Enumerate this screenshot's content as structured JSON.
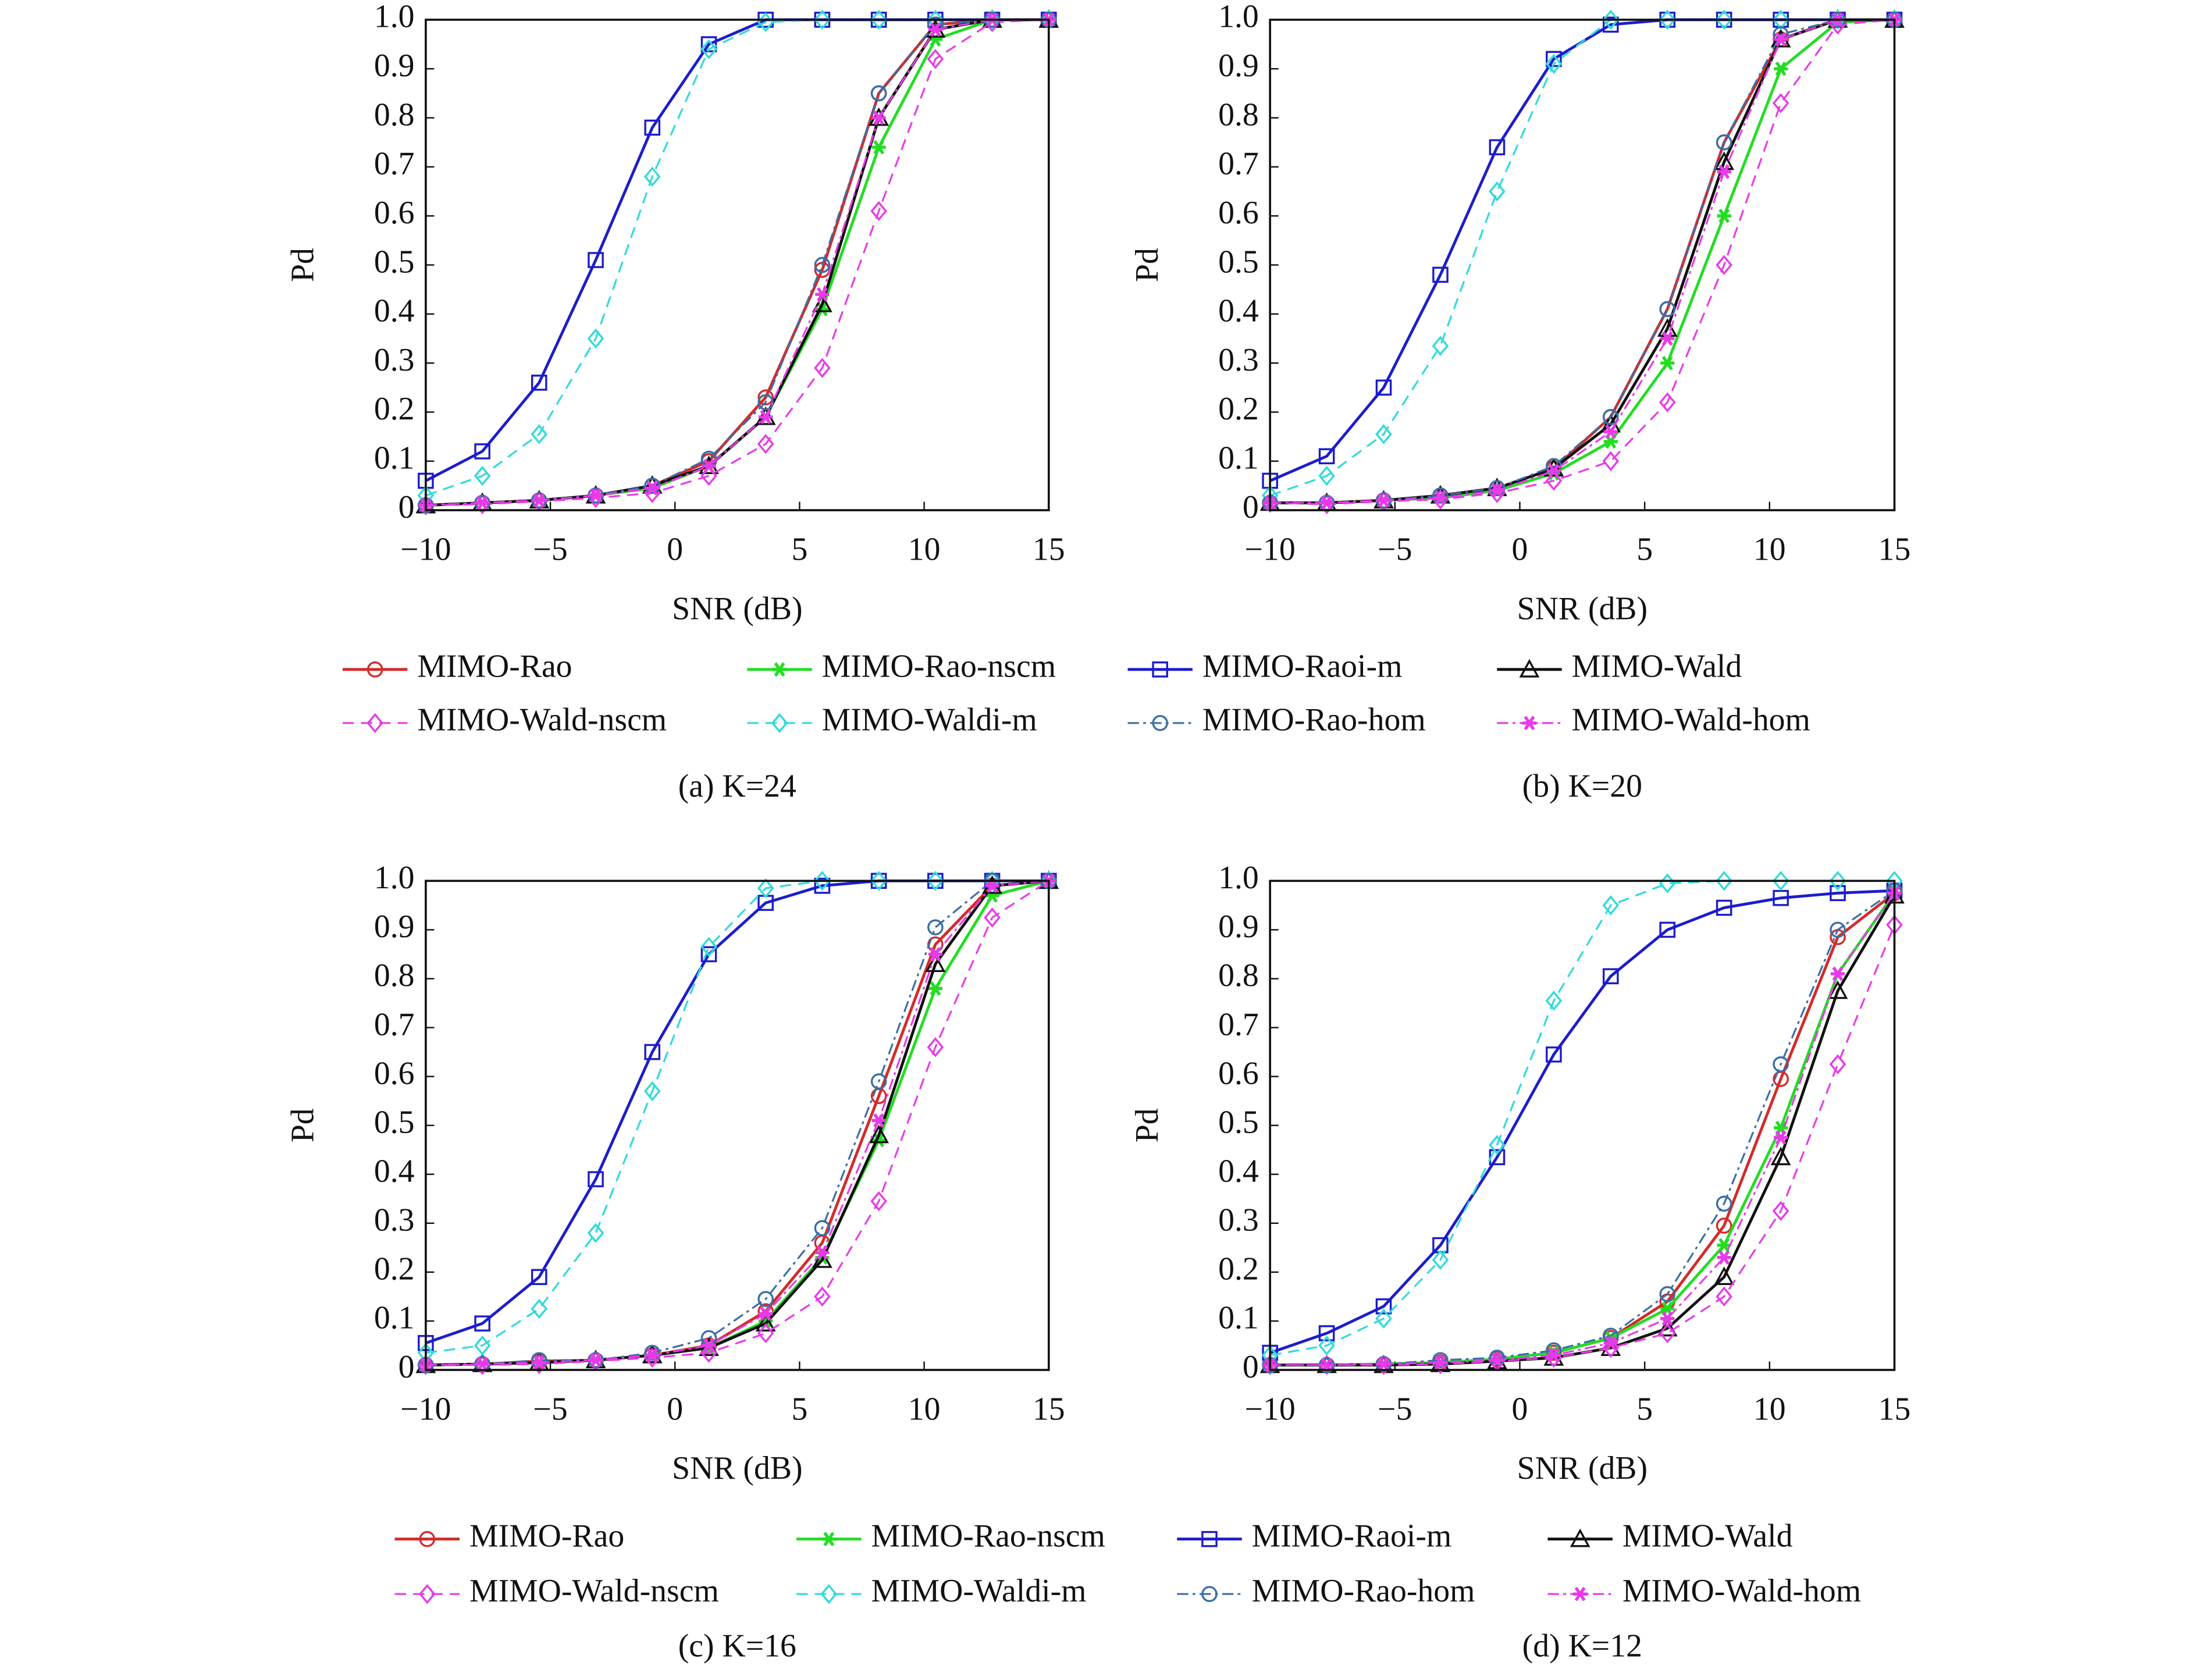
{
  "chart_data": [
    {
      "type": "line",
      "caption": "(a) K=24",
      "x_label": "SNR (dB)",
      "y_label": "Pd",
      "x": [
        -10,
        -7.73,
        -5.45,
        -3.18,
        -0.91,
        1.36,
        3.64,
        5.91,
        8.18,
        10.45,
        12.73,
        15
      ],
      "xlim": [
        -10,
        15
      ],
      "xticks": [
        {
          "value": -10,
          "label": "−10"
        },
        {
          "value": -5,
          "label": "−5"
        },
        0,
        5,
        10,
        15
      ],
      "ylim": [
        0,
        1
      ],
      "yticks": [
        0,
        0.1,
        0.2,
        0.3,
        0.4,
        0.5,
        0.6,
        0.7,
        0.8,
        0.9,
        {
          "value": 1,
          "label": "1.0"
        }
      ],
      "series": [
        {
          "name": "MIMO-Rao",
          "color": "#d42a2a",
          "marker": "circle",
          "dash": "solid",
          "values": [
            0.01,
            0.015,
            0.02,
            0.03,
            0.05,
            0.1,
            0.23,
            0.49,
            0.85,
            0.99,
            1,
            1
          ]
        },
        {
          "name": "MIMO-Rao-nscm",
          "color": "#22dd22",
          "marker": "star",
          "dash": "solid",
          "values": [
            0.01,
            0.015,
            0.02,
            0.03,
            0.045,
            0.09,
            0.19,
            0.41,
            0.74,
            0.96,
            1,
            1
          ]
        },
        {
          "name": "MIMO-Raoi-m",
          "color": "#1c1ccc",
          "marker": "square",
          "dash": "solid",
          "values": [
            0.06,
            0.12,
            0.26,
            0.51,
            0.78,
            0.95,
            1,
            1,
            1,
            1,
            1,
            1
          ]
        },
        {
          "name": "MIMO-Wald",
          "color": "#111111",
          "marker": "triangle",
          "dash": "solid",
          "values": [
            0.01,
            0.015,
            0.02,
            0.03,
            0.05,
            0.09,
            0.19,
            0.42,
            0.8,
            0.98,
            1,
            1
          ]
        },
        {
          "name": "MIMO-Wald-nscm",
          "color": "#e83ae8",
          "marker": "diamond",
          "dash": "dashed",
          "values": [
            0.01,
            0.012,
            0.018,
            0.025,
            0.035,
            0.07,
            0.135,
            0.29,
            0.61,
            0.92,
            0.995,
            1
          ]
        },
        {
          "name": "MIMO-Waldi-m",
          "color": "#30dada",
          "marker": "diamond",
          "dash": "dashed",
          "values": [
            0.03,
            0.07,
            0.155,
            0.35,
            0.68,
            0.94,
            0.995,
            1,
            1,
            1,
            1,
            1
          ]
        },
        {
          "name": "MIMO-Rao-hom",
          "color": "#3a6ea5",
          "marker": "circle",
          "dash": "dashdot",
          "values": [
            0.01,
            0.015,
            0.02,
            0.03,
            0.05,
            0.105,
            0.22,
            0.5,
            0.85,
            0.99,
            1,
            1
          ]
        },
        {
          "name": "MIMO-Wald-hom",
          "color": "#e83ae8",
          "marker": "star",
          "dash": "dashdot",
          "values": [
            0.01,
            0.015,
            0.02,
            0.03,
            0.045,
            0.09,
            0.19,
            0.44,
            0.8,
            0.98,
            1,
            1
          ]
        }
      ]
    },
    {
      "type": "line",
      "caption": "(b) K=20",
      "x_label": "SNR (dB)",
      "y_label": "Pd",
      "x": [
        -10,
        -7.73,
        -5.45,
        -3.18,
        -0.91,
        1.36,
        3.64,
        5.91,
        8.18,
        10.45,
        12.73,
        15
      ],
      "xlim": [
        -10,
        15
      ],
      "xticks": [
        {
          "value": -10,
          "label": "−10"
        },
        {
          "value": -5,
          "label": "−5"
        },
        0,
        5,
        10,
        15
      ],
      "ylim": [
        0,
        1
      ],
      "yticks": [
        0,
        0.1,
        0.2,
        0.3,
        0.4,
        0.5,
        0.6,
        0.7,
        0.8,
        0.9,
        {
          "value": 1,
          "label": "1.0"
        }
      ],
      "series": [
        {
          "name": "MIMO-Rao",
          "color": "#d42a2a",
          "marker": "circle",
          "dash": "solid",
          "values": [
            0.015,
            0.015,
            0.02,
            0.03,
            0.045,
            0.085,
            0.19,
            0.41,
            0.75,
            0.96,
            1,
            1
          ]
        },
        {
          "name": "MIMO-Rao-nscm",
          "color": "#22dd22",
          "marker": "star",
          "dash": "solid",
          "values": [
            0.015,
            0.015,
            0.02,
            0.025,
            0.04,
            0.075,
            0.14,
            0.3,
            0.6,
            0.9,
            0.995,
            1
          ]
        },
        {
          "name": "MIMO-Raoi-m",
          "color": "#1c1ccc",
          "marker": "square",
          "dash": "solid",
          "values": [
            0.06,
            0.11,
            0.25,
            0.48,
            0.74,
            0.92,
            0.99,
            1,
            1,
            1,
            1,
            1
          ]
        },
        {
          "name": "MIMO-Wald",
          "color": "#111111",
          "marker": "triangle",
          "dash": "solid",
          "values": [
            0.015,
            0.015,
            0.02,
            0.03,
            0.045,
            0.085,
            0.175,
            0.37,
            0.71,
            0.96,
            1,
            1
          ]
        },
        {
          "name": "MIMO-Wald-nscm",
          "color": "#e83ae8",
          "marker": "diamond",
          "dash": "dashed",
          "values": [
            0.015,
            0.012,
            0.018,
            0.022,
            0.035,
            0.06,
            0.1,
            0.22,
            0.5,
            0.83,
            0.99,
            1
          ]
        },
        {
          "name": "MIMO-Waldi-m",
          "color": "#30dada",
          "marker": "diamond",
          "dash": "dashed",
          "values": [
            0.03,
            0.07,
            0.155,
            0.335,
            0.65,
            0.91,
            1,
            1,
            1,
            1,
            1,
            1
          ]
        },
        {
          "name": "MIMO-Rao-hom",
          "color": "#3a6ea5",
          "marker": "circle",
          "dash": "dashdot",
          "values": [
            0.015,
            0.015,
            0.02,
            0.03,
            0.045,
            0.09,
            0.19,
            0.41,
            0.75,
            0.97,
            1,
            1
          ]
        },
        {
          "name": "MIMO-Wald-hom",
          "color": "#e83ae8",
          "marker": "star",
          "dash": "dashdot",
          "values": [
            0.015,
            0.015,
            0.02,
            0.025,
            0.04,
            0.08,
            0.16,
            0.35,
            0.69,
            0.96,
            1,
            1
          ]
        }
      ]
    },
    {
      "type": "line",
      "caption": "(c) K=16",
      "x_label": "SNR (dB)",
      "y_label": "Pd",
      "x": [
        -10,
        -7.73,
        -5.45,
        -3.18,
        -0.91,
        1.36,
        3.64,
        5.91,
        8.18,
        10.45,
        12.73,
        15
      ],
      "xlim": [
        -10,
        15
      ],
      "xticks": [
        {
          "value": -10,
          "label": "−10"
        },
        {
          "value": -5,
          "label": "−5"
        },
        0,
        5,
        10,
        15
      ],
      "ylim": [
        0,
        1
      ],
      "yticks": [
        0,
        0.1,
        0.2,
        0.3,
        0.4,
        0.5,
        0.6,
        0.7,
        0.8,
        0.9,
        {
          "value": 1,
          "label": "1.0"
        }
      ],
      "series": [
        {
          "name": "MIMO-Rao",
          "color": "#d42a2a",
          "marker": "circle",
          "dash": "solid",
          "values": [
            0.01,
            0.012,
            0.018,
            0.02,
            0.03,
            0.05,
            0.12,
            0.26,
            0.56,
            0.87,
            0.99,
            1
          ]
        },
        {
          "name": "MIMO-Rao-nscm",
          "color": "#22dd22",
          "marker": "star",
          "dash": "solid",
          "values": [
            0.01,
            0.012,
            0.015,
            0.02,
            0.03,
            0.045,
            0.1,
            0.23,
            0.47,
            0.78,
            0.97,
            1
          ]
        },
        {
          "name": "MIMO-Raoi-m",
          "color": "#1c1ccc",
          "marker": "square",
          "dash": "solid",
          "values": [
            0.055,
            0.095,
            0.19,
            0.39,
            0.65,
            0.85,
            0.955,
            0.99,
            1,
            1,
            1,
            1
          ]
        },
        {
          "name": "MIMO-Wald",
          "color": "#111111",
          "marker": "triangle",
          "dash": "solid",
          "values": [
            0.01,
            0.012,
            0.015,
            0.02,
            0.03,
            0.045,
            0.095,
            0.225,
            0.48,
            0.83,
            0.99,
            1
          ]
        },
        {
          "name": "MIMO-Wald-nscm",
          "color": "#e83ae8",
          "marker": "diamond",
          "dash": "dashed",
          "values": [
            0.01,
            0.01,
            0.012,
            0.018,
            0.025,
            0.035,
            0.075,
            0.15,
            0.345,
            0.66,
            0.925,
            1
          ]
        },
        {
          "name": "MIMO-Waldi-m",
          "color": "#30dada",
          "marker": "diamond",
          "dash": "dashed",
          "values": [
            0.035,
            0.05,
            0.125,
            0.28,
            0.57,
            0.865,
            0.985,
            1,
            1,
            1,
            1,
            1
          ]
        },
        {
          "name": "MIMO-Rao-hom",
          "color": "#3a6ea5",
          "marker": "circle",
          "dash": "dashdot",
          "values": [
            0.01,
            0.012,
            0.02,
            0.02,
            0.035,
            0.065,
            0.145,
            0.29,
            0.59,
            0.905,
            1,
            1
          ]
        },
        {
          "name": "MIMO-Wald-hom",
          "color": "#e83ae8",
          "marker": "star",
          "dash": "dashdot",
          "values": [
            0.01,
            0.012,
            0.015,
            0.02,
            0.03,
            0.05,
            0.115,
            0.24,
            0.51,
            0.85,
            0.99,
            1
          ]
        }
      ]
    },
    {
      "type": "line",
      "caption": "(d) K=12",
      "x_label": "SNR (dB)",
      "y_label": "Pd",
      "x": [
        -10,
        -7.73,
        -5.45,
        -3.18,
        -0.91,
        1.36,
        3.64,
        5.91,
        8.18,
        10.45,
        12.73,
        15
      ],
      "xlim": [
        -10,
        15
      ],
      "xticks": [
        {
          "value": -10,
          "label": "−10"
        },
        {
          "value": -5,
          "label": "−5"
        },
        0,
        5,
        10,
        15
      ],
      "ylim": [
        0,
        1
      ],
      "yticks": [
        0,
        0.1,
        0.2,
        0.3,
        0.4,
        0.5,
        0.6,
        0.7,
        0.8,
        0.9,
        {
          "value": 1,
          "label": "1.0"
        }
      ],
      "series": [
        {
          "name": "MIMO-Rao",
          "color": "#d42a2a",
          "marker": "circle",
          "dash": "solid",
          "values": [
            0.01,
            0.01,
            0.012,
            0.015,
            0.022,
            0.035,
            0.065,
            0.14,
            0.295,
            0.595,
            0.885,
            0.975
          ]
        },
        {
          "name": "MIMO-Rao-nscm",
          "color": "#22dd22",
          "marker": "star",
          "dash": "solid",
          "values": [
            0.01,
            0.01,
            0.012,
            0.015,
            0.022,
            0.035,
            0.065,
            0.125,
            0.255,
            0.495,
            0.81,
            0.975
          ]
        },
        {
          "name": "MIMO-Raoi-m",
          "color": "#1c1ccc",
          "marker": "square",
          "dash": "solid",
          "values": [
            0.035,
            0.075,
            0.13,
            0.255,
            0.435,
            0.645,
            0.805,
            0.9,
            0.945,
            0.965,
            0.975,
            0.98
          ]
        },
        {
          "name": "MIMO-Wald",
          "color": "#111111",
          "marker": "triangle",
          "dash": "solid",
          "values": [
            0.01,
            0.01,
            0.01,
            0.012,
            0.018,
            0.025,
            0.045,
            0.085,
            0.19,
            0.435,
            0.775,
            0.97
          ]
        },
        {
          "name": "MIMO-Wald-nscm",
          "color": "#e83ae8",
          "marker": "diamond",
          "dash": "dashed",
          "values": [
            0.01,
            0.01,
            0.01,
            0.012,
            0.018,
            0.025,
            0.045,
            0.075,
            0.15,
            0.325,
            0.625,
            0.91
          ]
        },
        {
          "name": "MIMO-Waldi-m",
          "color": "#30dada",
          "marker": "diamond",
          "dash": "dashed",
          "values": [
            0.03,
            0.05,
            0.105,
            0.225,
            0.46,
            0.755,
            0.95,
            0.995,
            1,
            1,
            1,
            1
          ]
        },
        {
          "name": "MIMO-Rao-hom",
          "color": "#3a6ea5",
          "marker": "circle",
          "dash": "dashdot",
          "values": [
            0.01,
            0.01,
            0.012,
            0.02,
            0.025,
            0.04,
            0.07,
            0.155,
            0.34,
            0.625,
            0.9,
            0.98
          ]
        },
        {
          "name": "MIMO-Wald-hom",
          "color": "#e83ae8",
          "marker": "star",
          "dash": "dashdot",
          "values": [
            0.01,
            0.01,
            0.012,
            0.015,
            0.02,
            0.03,
            0.055,
            0.105,
            0.23,
            0.475,
            0.81,
            0.975
          ]
        }
      ]
    }
  ]
}
